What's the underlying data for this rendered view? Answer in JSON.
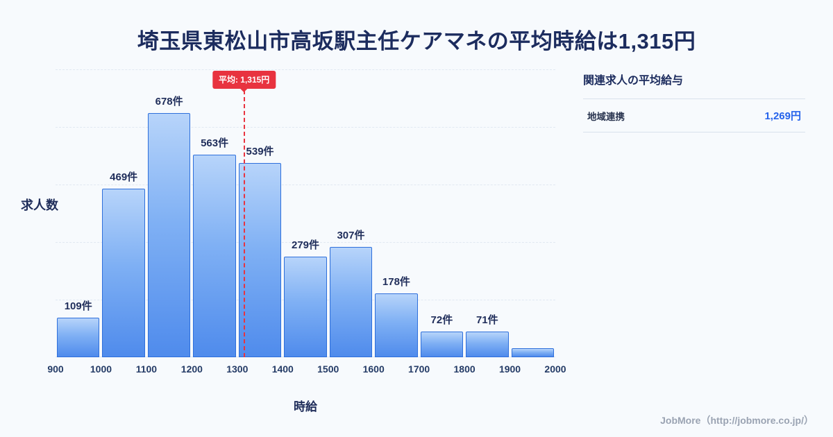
{
  "title": "埼玉県東松山市高坂駅主任ケアマネの平均時給は1,315円",
  "chart_data": {
    "type": "bar",
    "title": "埼玉県東松山市高坂駅主任ケアマネの平均時給は1,315円",
    "xlabel": "時給",
    "ylabel": "求人数",
    "bin_edges": [
      900,
      1000,
      1100,
      1200,
      1300,
      1400,
      1500,
      1600,
      1700,
      1800,
      1900,
      2000
    ],
    "values": [
      109,
      469,
      678,
      563,
      539,
      279,
      307,
      178,
      72,
      71,
      25
    ],
    "labels": [
      "109件",
      "469件",
      "678件",
      "563件",
      "539件",
      "279件",
      "307件",
      "178件",
      "72件",
      "71件",
      ""
    ],
    "xlim": [
      900,
      2000
    ],
    "ylim": [
      0,
      800
    ],
    "grid": true,
    "average": {
      "value": 1315,
      "label": "平均: 1,315円",
      "line_color": "#e8333f"
    },
    "bar_color_top": "#b7d4fa",
    "bar_color_bottom": "#4f8bec",
    "bar_border_color": "#2e6fdb"
  },
  "side_panel": {
    "heading": "関連求人の平均給与",
    "rows": [
      {
        "label": "地域連携",
        "value": "1,269円"
      }
    ],
    "value_color": "#2563eb"
  },
  "footer": {
    "credit": "JobMore（http://jobmore.co.jp/）"
  }
}
